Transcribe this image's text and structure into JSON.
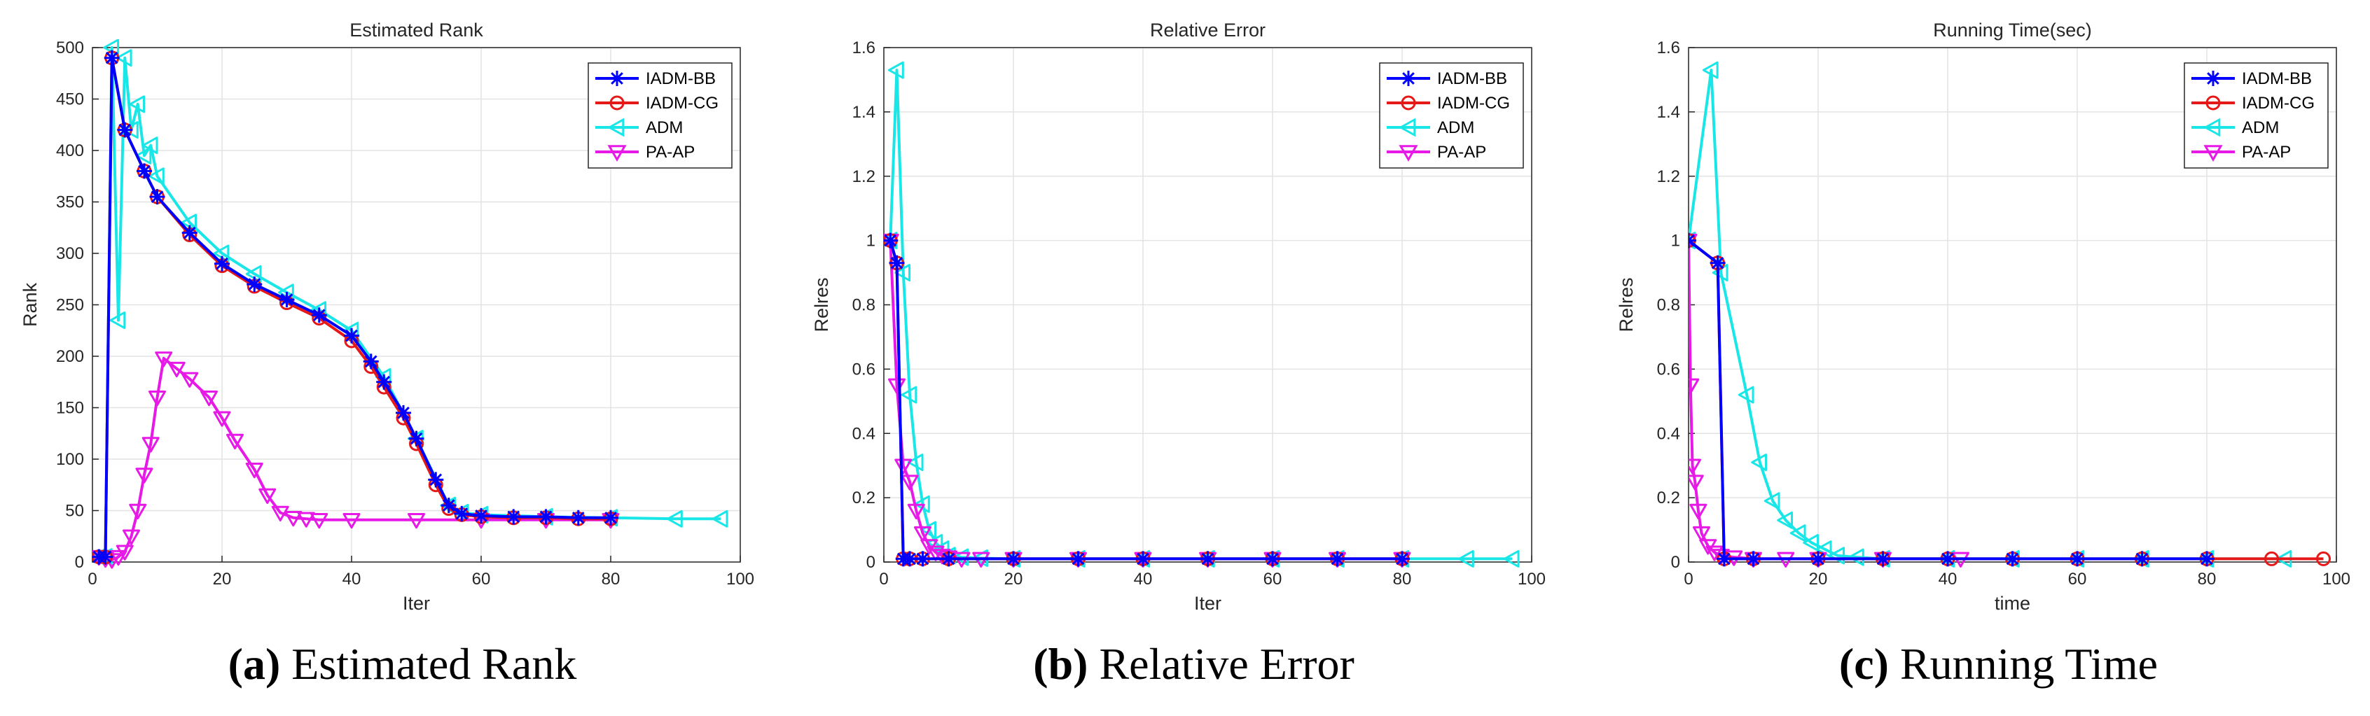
{
  "colors": {
    "IADM-BB": "#0000ff",
    "IADM-CG": "#e61919",
    "ADM": "#19e6e6",
    "PA-AP": "#e619e6"
  },
  "chart_data": [
    {
      "type": "line",
      "title": "Estimated Rank",
      "xlabel": "Iter",
      "ylabel": "Rank",
      "xlim": [
        0,
        100
      ],
      "ylim": [
        0,
        500
      ],
      "xticks": [
        0,
        20,
        40,
        60,
        80,
        100
      ],
      "yticks": [
        0,
        50,
        100,
        150,
        200,
        250,
        300,
        350,
        400,
        450,
        500
      ],
      "grid": true,
      "legend_position": "top-right",
      "caption_letter": "(a)",
      "caption_text": " Estimated Rank",
      "series": [
        {
          "name": "IADM-BB",
          "marker": "star",
          "x": [
            1,
            2,
            3,
            5,
            8,
            10,
            15,
            20,
            25,
            30,
            35,
            40,
            43,
            45,
            48,
            50,
            53,
            55,
            57,
            60,
            65,
            70,
            75,
            80
          ],
          "y": [
            5,
            5,
            490,
            420,
            380,
            355,
            320,
            290,
            270,
            255,
            240,
            220,
            195,
            175,
            145,
            120,
            80,
            55,
            47,
            45,
            44,
            44,
            43,
            43
          ]
        },
        {
          "name": "IADM-CG",
          "marker": "circle",
          "x": [
            1,
            2,
            3,
            5,
            8,
            10,
            15,
            20,
            25,
            30,
            35,
            40,
            43,
            45,
            48,
            50,
            53,
            55,
            57,
            60,
            65,
            70,
            75,
            80
          ],
          "y": [
            5,
            5,
            490,
            420,
            380,
            355,
            318,
            288,
            268,
            252,
            237,
            215,
            190,
            170,
            140,
            115,
            75,
            52,
            46,
            44,
            43,
            43,
            42,
            42
          ]
        },
        {
          "name": "ADM",
          "marker": "triangle-left",
          "x": [
            1,
            2,
            3,
            4,
            5,
            6,
            7,
            8,
            9,
            10,
            15,
            20,
            25,
            30,
            35,
            40,
            45,
            50,
            55,
            57,
            60,
            70,
            80,
            90,
            97
          ],
          "y": [
            5,
            5,
            500,
            235,
            490,
            420,
            445,
            395,
            405,
            375,
            330,
            300,
            280,
            262,
            245,
            225,
            180,
            120,
            55,
            48,
            46,
            44,
            43,
            42,
            42
          ]
        },
        {
          "name": "PA-AP",
          "marker": "triangle-down",
          "x": [
            1,
            2,
            3,
            4,
            5,
            6,
            7,
            8,
            9,
            10,
            11,
            13,
            15,
            18,
            20,
            22,
            25,
            27,
            29,
            31,
            33,
            35,
            40,
            50,
            60,
            70,
            80
          ],
          "y": [
            5,
            3,
            2,
            5,
            10,
            25,
            50,
            85,
            115,
            160,
            198,
            188,
            178,
            160,
            140,
            118,
            90,
            65,
            48,
            43,
            42,
            41,
            41,
            41,
            41,
            41,
            41
          ]
        }
      ]
    },
    {
      "type": "line",
      "title": "Relative Error",
      "xlabel": "Iter",
      "ylabel": "Relres",
      "xlim": [
        0,
        100
      ],
      "ylim": [
        0,
        1.6
      ],
      "xticks": [
        0,
        20,
        40,
        60,
        80,
        100
      ],
      "yticks": [
        0,
        0.2,
        0.4,
        0.6,
        0.8,
        1,
        1.2,
        1.4,
        1.6
      ],
      "grid": true,
      "legend_position": "top-right",
      "caption_letter": "(b)",
      "caption_text": " Relative Error",
      "series": [
        {
          "name": "IADM-BB",
          "marker": "star",
          "x": [
            1,
            2,
            3,
            4,
            6,
            10,
            20,
            30,
            40,
            50,
            60,
            70,
            80
          ],
          "y": [
            1,
            0.93,
            0.01,
            0.01,
            0.01,
            0.01,
            0.01,
            0.01,
            0.01,
            0.01,
            0.01,
            0.01,
            0.01
          ]
        },
        {
          "name": "IADM-CG",
          "marker": "circle",
          "x": [
            1,
            2,
            3,
            4,
            6,
            10,
            20,
            30,
            40,
            50,
            60,
            70,
            80
          ],
          "y": [
            1,
            0.93,
            0.01,
            0.01,
            0.01,
            0.01,
            0.01,
            0.01,
            0.01,
            0.01,
            0.01,
            0.01,
            0.01
          ]
        },
        {
          "name": "ADM",
          "marker": "triangle-left",
          "x": [
            1,
            2,
            3,
            4,
            5,
            6,
            7,
            8,
            9,
            10,
            12,
            15,
            20,
            30,
            40,
            50,
            60,
            70,
            80,
            90,
            97
          ],
          "y": [
            1,
            1.53,
            0.9,
            0.52,
            0.31,
            0.18,
            0.1,
            0.06,
            0.04,
            0.02,
            0.015,
            0.012,
            0.01,
            0.01,
            0.01,
            0.01,
            0.01,
            0.01,
            0.01,
            0.01,
            0.01
          ]
        },
        {
          "name": "PA-AP",
          "marker": "triangle-down",
          "x": [
            1,
            2,
            3,
            4,
            5,
            6,
            7,
            8,
            9,
            10,
            12,
            15,
            20,
            30,
            40,
            50,
            60,
            70,
            80
          ],
          "y": [
            1,
            0.55,
            0.3,
            0.25,
            0.16,
            0.09,
            0.05,
            0.03,
            0.02,
            0.015,
            0.01,
            0.01,
            0.01,
            0.01,
            0.01,
            0.01,
            0.01,
            0.01,
            0.01
          ]
        }
      ]
    },
    {
      "type": "line",
      "title": "Running Time(sec)",
      "xlabel": "time",
      "ylabel": "Relres",
      "xlim": [
        0,
        100
      ],
      "ylim": [
        0,
        1.6
      ],
      "xticks": [
        0,
        20,
        40,
        60,
        80,
        100
      ],
      "yticks": [
        0,
        0.2,
        0.4,
        0.6,
        0.8,
        1,
        1.2,
        1.4,
        1.6
      ],
      "grid": true,
      "legend_position": "top-right",
      "caption_letter": "(c)",
      "caption_text": " Running Time",
      "series": [
        {
          "name": "IADM-BB",
          "marker": "star",
          "x": [
            0,
            4.5,
            5.5,
            10,
            20,
            30,
            40,
            50,
            60,
            70,
            80
          ],
          "y": [
            1,
            0.93,
            0.01,
            0.01,
            0.01,
            0.01,
            0.01,
            0.01,
            0.01,
            0.01,
            0.01
          ]
        },
        {
          "name": "IADM-CG",
          "marker": "circle",
          "x": [
            0,
            4.5,
            5.5,
            10,
            20,
            30,
            40,
            50,
            60,
            70,
            80,
            90,
            98
          ],
          "y": [
            1,
            0.93,
            0.01,
            0.01,
            0.01,
            0.01,
            0.01,
            0.01,
            0.01,
            0.01,
            0.01,
            0.01,
            0.01
          ]
        },
        {
          "name": "ADM",
          "marker": "triangle-left",
          "x": [
            0,
            3.5,
            5,
            9,
            11,
            13,
            15,
            17,
            19,
            21,
            23,
            26,
            30,
            40,
            50,
            60,
            70,
            80,
            92
          ],
          "y": [
            1,
            1.53,
            0.9,
            0.52,
            0.31,
            0.19,
            0.13,
            0.09,
            0.06,
            0.04,
            0.02,
            0.015,
            0.01,
            0.01,
            0.01,
            0.01,
            0.01,
            0.01,
            0.01
          ]
        },
        {
          "name": "PA-AP",
          "marker": "triangle-down",
          "x": [
            0,
            0.3,
            0.6,
            1,
            1.5,
            2,
            3,
            4,
            5,
            7,
            10,
            15,
            20,
            30,
            42
          ],
          "y": [
            1,
            0.55,
            0.3,
            0.25,
            0.16,
            0.09,
            0.05,
            0.03,
            0.02,
            0.015,
            0.01,
            0.01,
            0.01,
            0.01,
            0.01
          ]
        }
      ]
    }
  ]
}
